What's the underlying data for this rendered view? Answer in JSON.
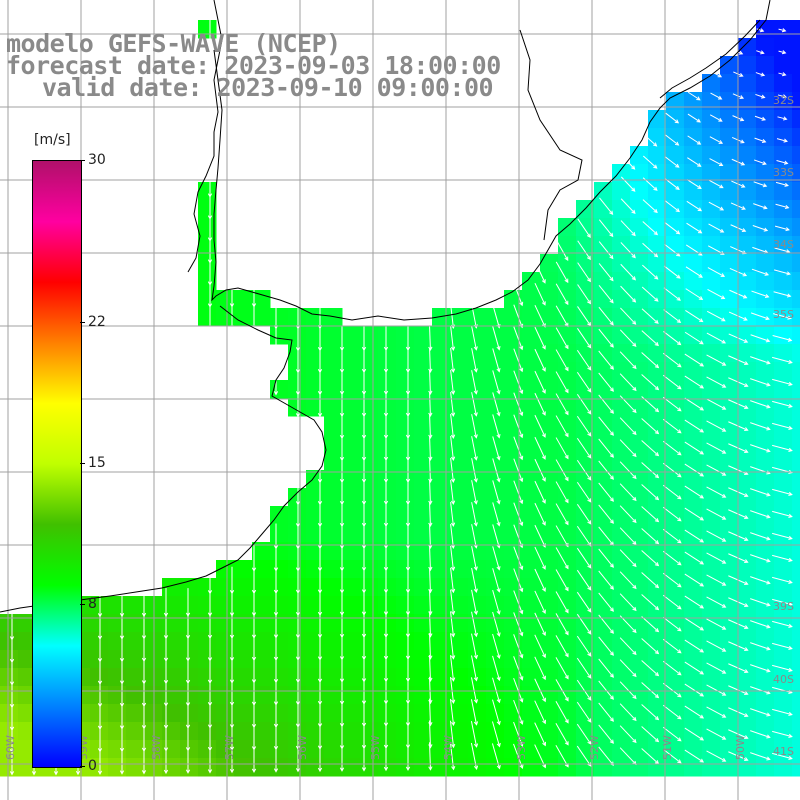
{
  "title": {
    "line1": "modelo GEFS-WAVE (NCEP)",
    "line2": "forecast date: 2023-09-03 18:00:00",
    "line3": "valid date: 2023-09-10 09:00:00"
  },
  "colorbar": {
    "unit": "[m/s]",
    "min": 0,
    "max": 30,
    "ticks": [
      {
        "label": "30",
        "value": 30
      },
      {
        "label": "22",
        "value": 22
      },
      {
        "label": "15",
        "value": 15
      },
      {
        "label": "8",
        "value": 8
      },
      {
        "label": "0",
        "value": 0
      }
    ],
    "gradient_stops": [
      "#0000ff",
      "#0080ff",
      "#00ffff",
      "#00ff00",
      "#40c000",
      "#c0ff00",
      "#ffff00",
      "#ff8000",
      "#ff0000",
      "#ff00a0",
      "#b0106a"
    ]
  },
  "map": {
    "lon_range": [
      -60,
      -49
    ],
    "lat_range": [
      -41.5,
      -30.5
    ],
    "lat_labels": [
      "32S",
      "33S",
      "34S",
      "35S",
      "39S",
      "40S",
      "41S"
    ],
    "lon_labels": [
      "60W",
      "59W",
      "58W",
      "57W",
      "56W",
      "55W",
      "54W",
      "53W",
      "52W",
      "51W",
      "50W"
    ],
    "colors": {
      "land": "#ffffff",
      "grid": "#a0a0a0",
      "coast": "#000000",
      "arrow": "#ffffff"
    }
  }
}
